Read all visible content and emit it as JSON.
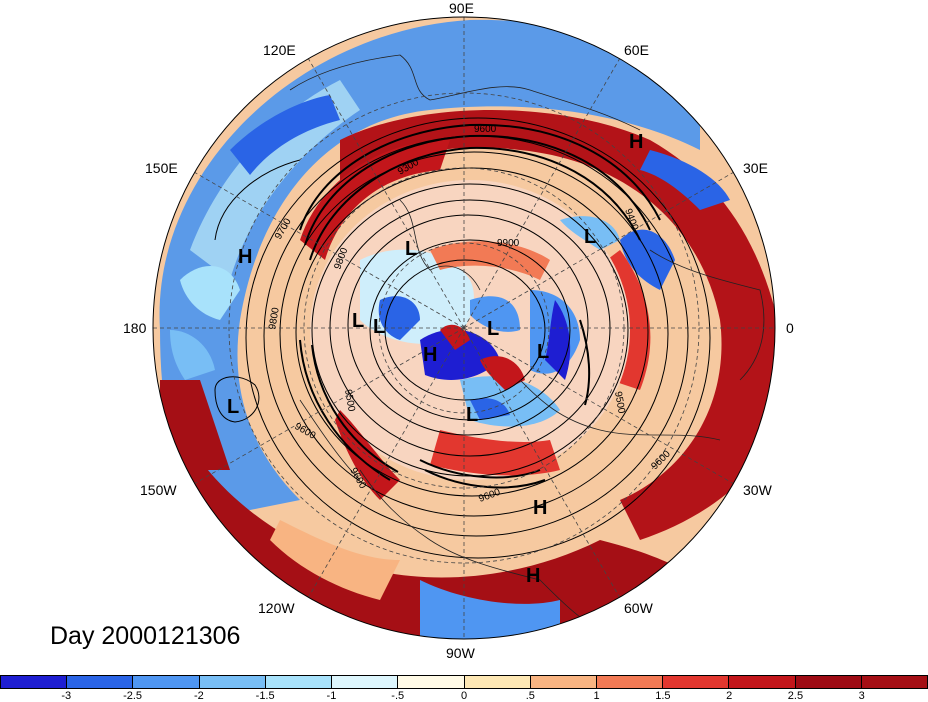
{
  "title": "Day 2000121306",
  "longitude_labels": [
    "90E",
    "60E",
    "30E",
    "0",
    "30W",
    "60W",
    "90W",
    "120W",
    "150W",
    "180",
    "150E",
    "120E"
  ],
  "pressure_systems": [
    "H",
    "H",
    "L",
    "L",
    "L",
    "H",
    "L",
    "L",
    "L",
    "L",
    "H",
    "H",
    "L"
  ],
  "contour_labels": [
    "9600",
    "9700",
    "9900",
    "9800",
    "9800",
    "9500",
    "9600",
    "9600",
    "9600",
    "9500",
    "9400",
    "9600",
    "9300"
  ],
  "colorbar": {
    "tick_labels": [
      "-3",
      "-2.5",
      "-2",
      "-1.5",
      "-1",
      "-.5",
      "0",
      ".5",
      "1",
      "1.5",
      "2",
      "2.5",
      "3"
    ],
    "colors": [
      "#1e1ed2",
      "#2a64e6",
      "#4f96f2",
      "#78bef5",
      "#a8e2fb",
      "#ddf6fd",
      "#fffae6",
      "#fde7b4",
      "#f8b482",
      "#f27a55",
      "#e2372f",
      "#c3161b",
      "#9e0b14",
      "#a50f15"
    ]
  }
}
